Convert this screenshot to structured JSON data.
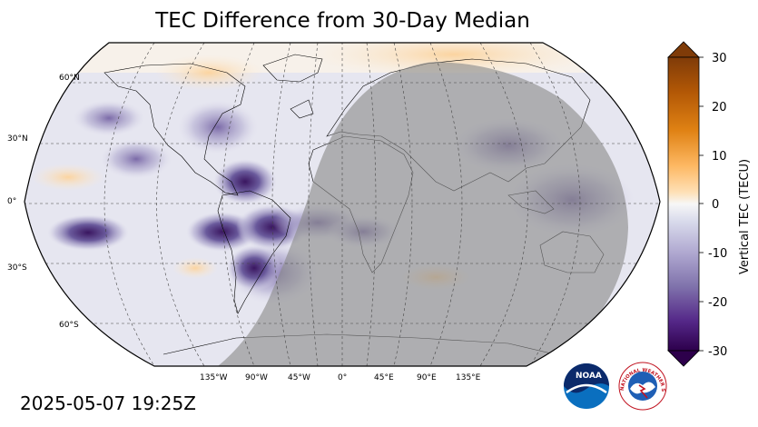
{
  "title": "TEC Difference from 30-Day Median",
  "timestamp": "2025-05-07 19:25Z",
  "map": {
    "projection": "Robinson",
    "lat_labels": [
      "60°N",
      "30°N",
      "0°",
      "30°S",
      "60°S"
    ],
    "lon_labels": [
      "135°W",
      "90°W",
      "45°W",
      "0°",
      "45°E",
      "90°E",
      "135°E"
    ],
    "night_shading": true,
    "gridlines": "dashed"
  },
  "colorbar": {
    "label": "Vertical TEC (TECU)",
    "ticks": [
      "30",
      "20",
      "10",
      "0",
      "-10",
      "-20",
      "-30"
    ],
    "range": [
      -30,
      30
    ],
    "colormap": "purple-white-orange",
    "extend": "both"
  },
  "logos": {
    "noaa": "NOAA",
    "nws_ring": "NATIONAL WEATHER SERVICE"
  },
  "colors": {
    "negative_strong": "#2d0a4e",
    "negative_mid": "#7b6aa8",
    "neutral": "#f2f2f2",
    "positive_mid": "#f5a948",
    "positive_strong": "#7f3b08",
    "night_overlay": "#999999"
  }
}
